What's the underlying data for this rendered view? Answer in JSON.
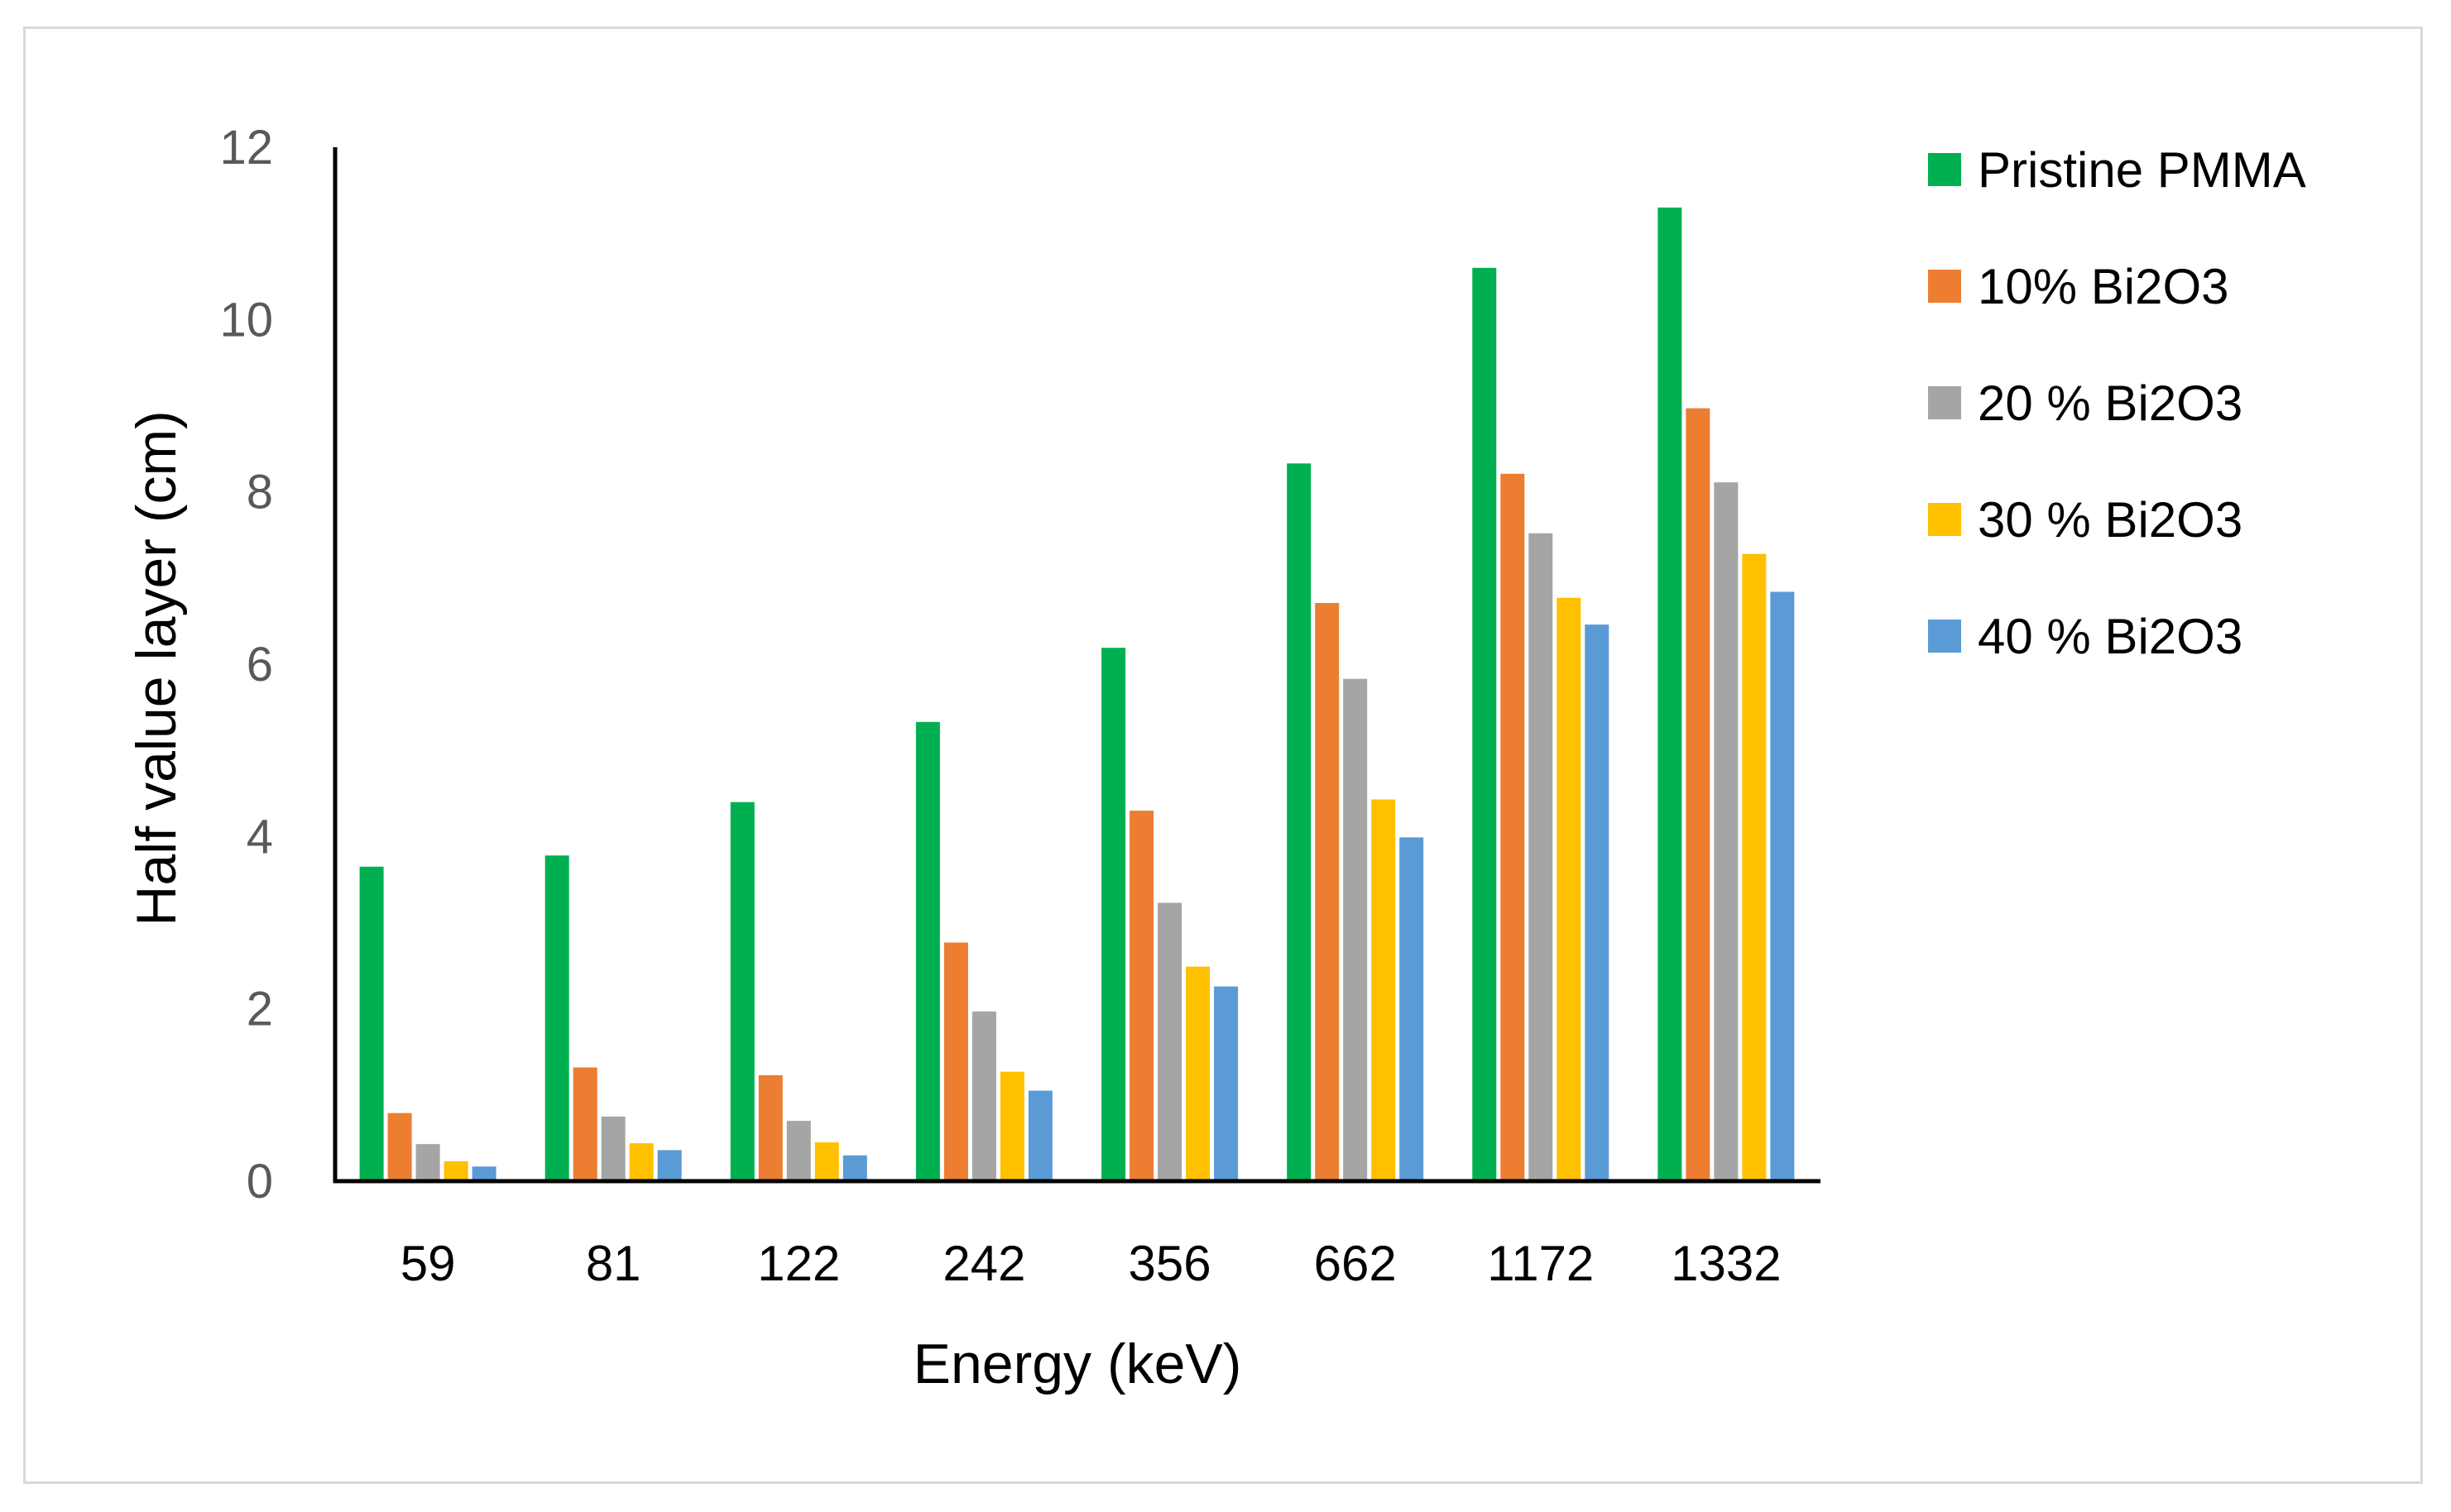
{
  "chart_data": {
    "type": "bar",
    "title": "",
    "xlabel": "Energy (keV)",
    "ylabel": "Half value layer (cm)",
    "ylim": [
      0,
      12
    ],
    "yticks": [
      0,
      2,
      4,
      6,
      8,
      10,
      12
    ],
    "grid": false,
    "legend_position": "right",
    "categories": [
      "59",
      "81",
      "122",
      "242",
      "356",
      "662",
      "1172",
      "1332"
    ],
    "series": [
      {
        "name": "Pristine PMMA",
        "color": "#00b050",
        "values": [
          3.65,
          3.78,
          4.4,
          5.33,
          6.19,
          8.33,
          10.6,
          11.3
        ]
      },
      {
        "name": "10% Bi2O3",
        "color": "#ed7d31",
        "values": [
          0.79,
          1.32,
          1.23,
          2.77,
          4.3,
          6.71,
          8.21,
          8.97
        ]
      },
      {
        "name": "20 % Bi2O3",
        "color": "#a5a5a5",
        "values": [
          0.43,
          0.75,
          0.7,
          1.97,
          3.23,
          5.83,
          7.52,
          8.11
        ]
      },
      {
        "name": "30 % Bi2O3",
        "color": "#ffc000",
        "values": [
          0.23,
          0.44,
          0.45,
          1.27,
          2.49,
          4.43,
          6.77,
          7.28
        ]
      },
      {
        "name": "40 % Bi2O3",
        "color": "#5b9bd5",
        "values": [
          0.17,
          0.36,
          0.3,
          1.05,
          2.26,
          3.99,
          6.46,
          6.84
        ]
      }
    ]
  }
}
